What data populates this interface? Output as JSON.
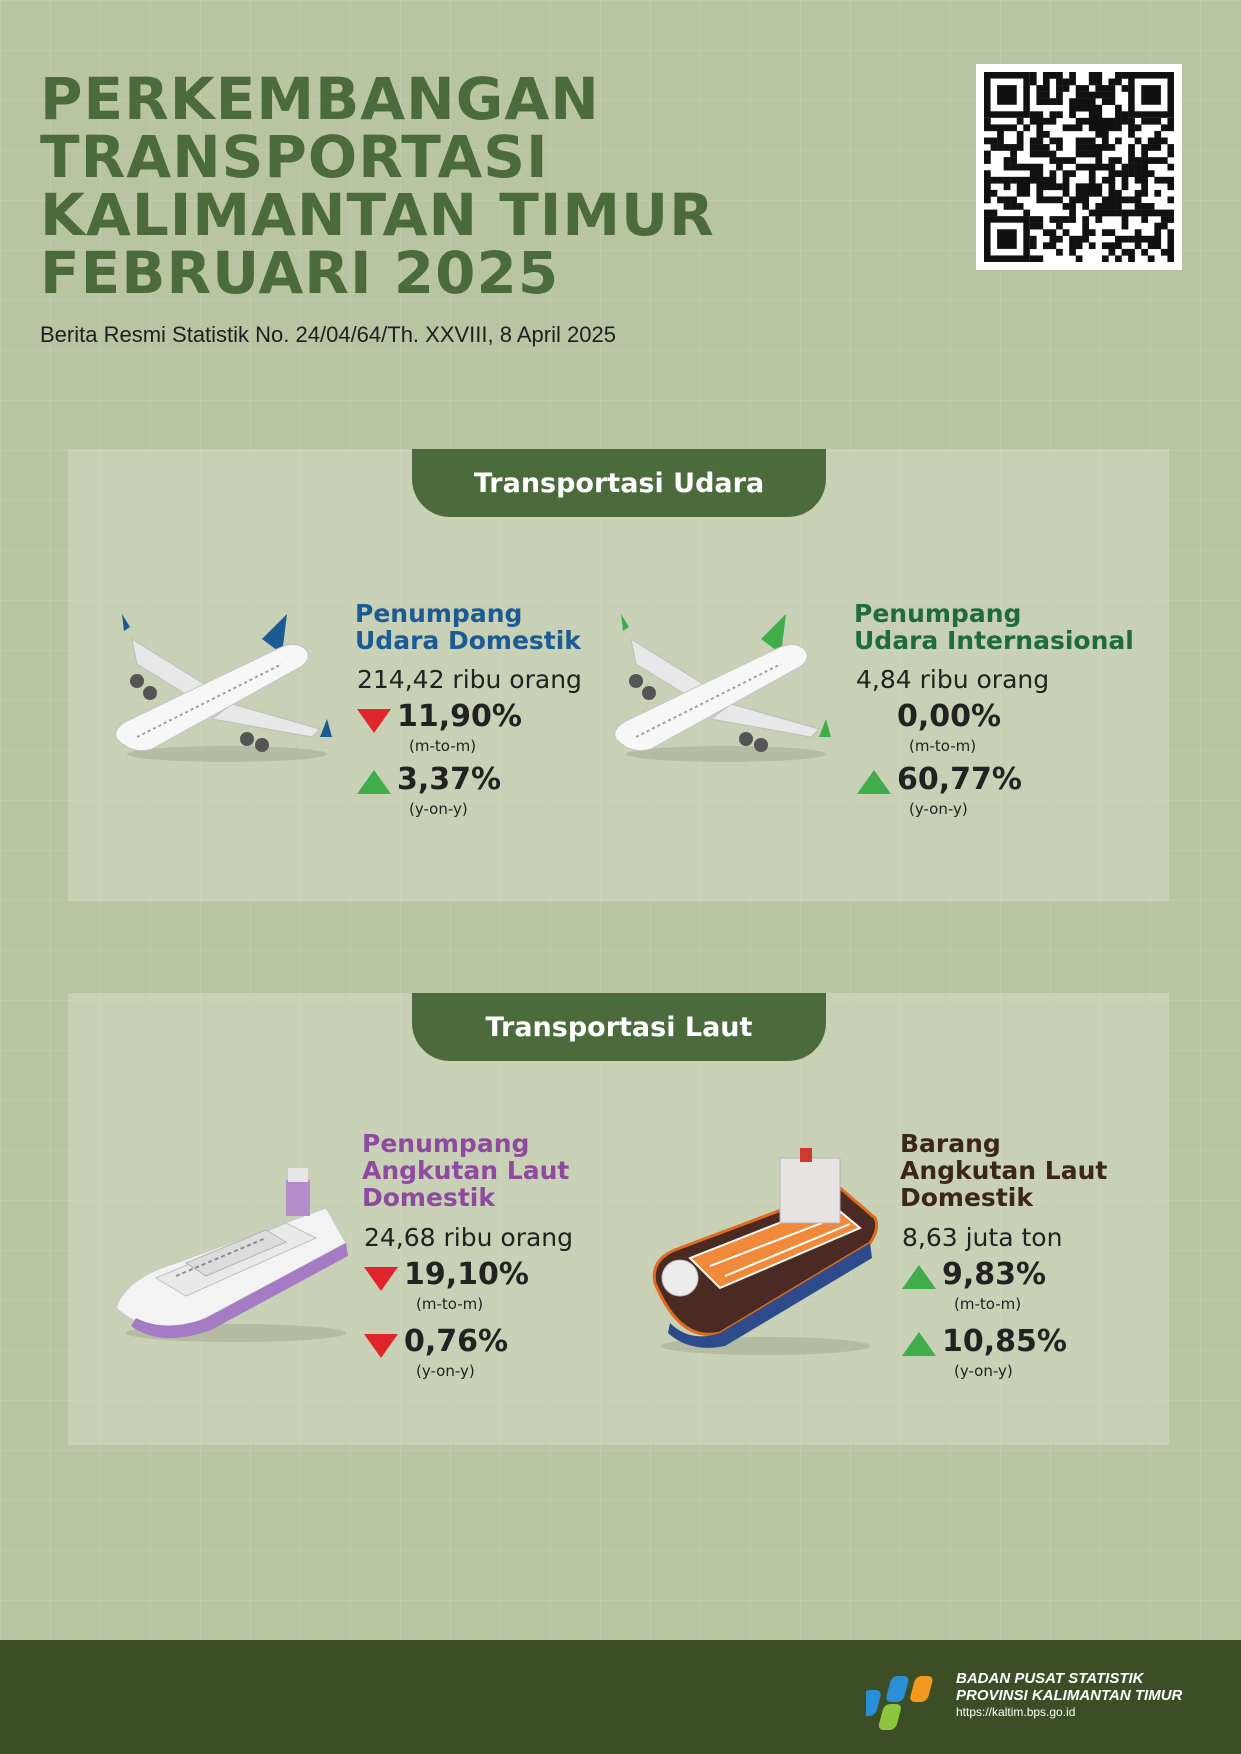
{
  "header": {
    "title_lines": [
      "PERKEMBANGAN",
      "TRANSPORTASI",
      "KALIMANTAN TIMUR",
      "FEBRUARI 2025"
    ],
    "subtitle": "Berita Resmi Statistik No. 24/04/64/Th. XXVIII, 8 April 2025"
  },
  "qr_code": {
    "icon": "qr-code"
  },
  "sections": {
    "udara": {
      "title": "Transportasi Udara",
      "cards": [
        {
          "title_lines": [
            "Penumpang",
            "Udara Domestik"
          ],
          "title_color": "#1b5a93",
          "icon": "airplane-icon",
          "amount": "214,42 ribu orang",
          "mtm": {
            "value": "11,90%",
            "label": "(m-to-m)",
            "direction": "down"
          },
          "yoy": {
            "value": "3,37%",
            "label": "(y-on-y)",
            "direction": "up"
          }
        },
        {
          "title_lines": [
            "Penumpang",
            "Udara Internasional"
          ],
          "title_color": "#1f6b3a",
          "icon": "airplane-icon",
          "amount": "4,84 ribu orang",
          "mtm": {
            "value": "0,00%",
            "label": "(m-to-m)",
            "direction": "none"
          },
          "yoy": {
            "value": "60,77%",
            "label": "(y-on-y)",
            "direction": "up"
          }
        }
      ]
    },
    "laut": {
      "title": "Transportasi Laut",
      "cards": [
        {
          "title_lines": [
            "Penumpang",
            "Angkutan Laut",
            "Domestik"
          ],
          "title_color": "#8e4a9f",
          "icon": "passenger-ship-icon",
          "amount": "24,68 ribu orang",
          "mtm": {
            "value": "19,10%",
            "label": "(m-to-m)",
            "direction": "down"
          },
          "yoy": {
            "value": "0,76%",
            "label": "(y-on-y)",
            "direction": "down"
          }
        },
        {
          "title_lines": [
            "Barang",
            "Angkutan Laut",
            "Domestik"
          ],
          "title_color": "#3b2618",
          "icon": "cargo-ship-icon",
          "amount": "8,63 juta ton",
          "mtm": {
            "value": "9,83%",
            "label": "(m-to-m)",
            "direction": "up"
          },
          "yoy": {
            "value": "10,85%",
            "label": "(y-on-y)",
            "direction": "up"
          }
        }
      ]
    }
  },
  "colors": {
    "up": "#3fae4a",
    "down": "#e0262d",
    "accent": "#4c6b3d",
    "footer": "#3d4d26"
  },
  "footer": {
    "org_line1": "BADAN PUSAT STATISTIK",
    "org_line2": "PROVINSI KALIMANTAN TIMUR",
    "url": "https://kaltim.bps.go.id"
  }
}
